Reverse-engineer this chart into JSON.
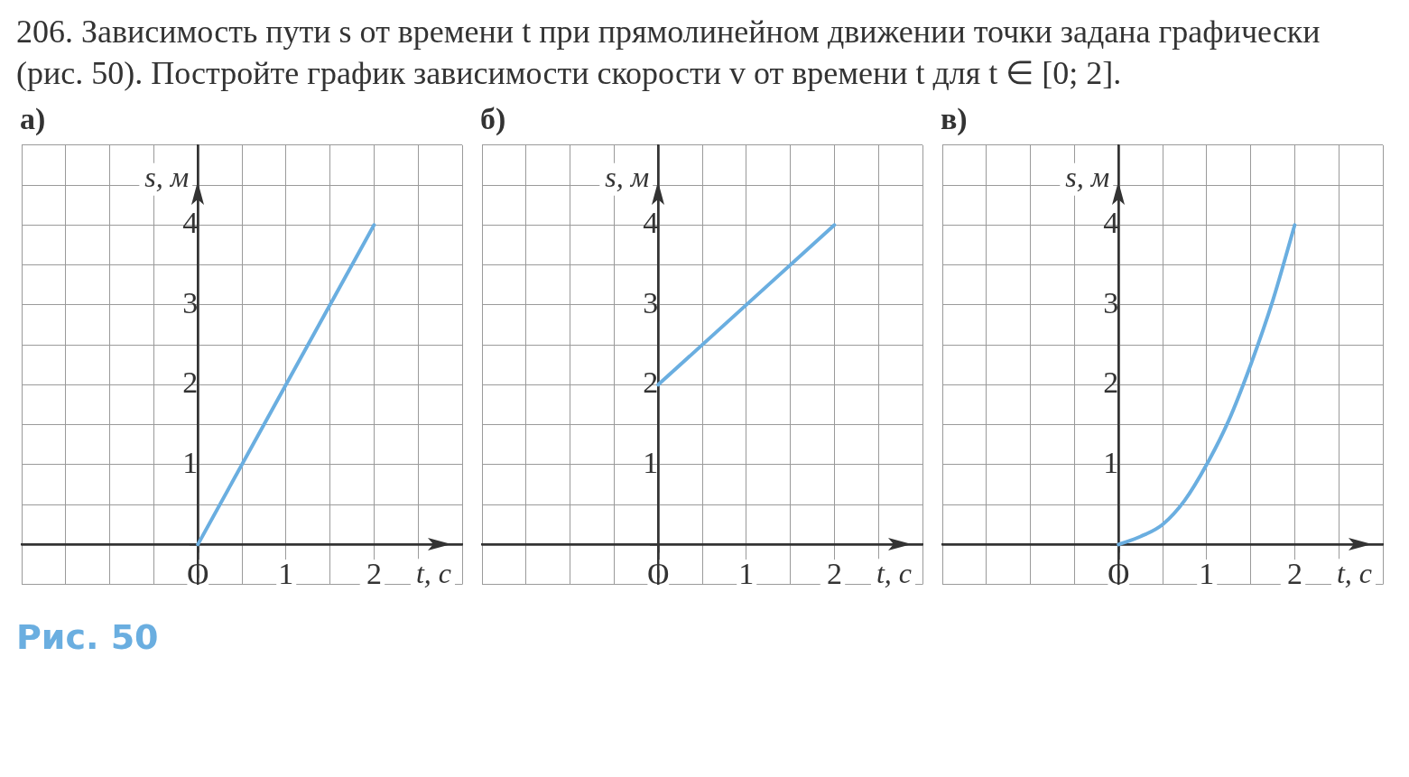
{
  "chart_data": [
    {
      "type": "other",
      "title": "206. Зависимость пути s от времени t при прямолинейном движении точки задана графически (рис. 50). Постройте график зависимости скорости v от времени t для t ∈ [0; 2]."
    },
    {
      "type": "line",
      "title": "а)",
      "xlabel": "t, с",
      "ylabel": "s, м",
      "marker": "none",
      "grid": true,
      "xlim": [
        -2,
        3
      ],
      "ylim": [
        -0.5,
        5
      ],
      "xticks": [
        {
          "value": -2,
          "label": null
        },
        {
          "value": -1.5,
          "label": null
        },
        {
          "value": -1,
          "label": null
        },
        {
          "value": -0.5,
          "label": null
        },
        {
          "value": 0,
          "label": "O"
        },
        {
          "value": 0.5,
          "label": null
        },
        {
          "value": 1,
          "label": "1"
        },
        {
          "value": 1.5,
          "label": null
        },
        {
          "value": 2,
          "label": "2"
        },
        {
          "value": 2.5,
          "label": null
        },
        {
          "value": 3,
          "label": null
        }
      ],
      "yticks": [
        {
          "value": -0.5,
          "label": null
        },
        {
          "value": 0,
          "label": null
        },
        {
          "value": 0.5,
          "label": null
        },
        {
          "value": 1,
          "label": "1"
        },
        {
          "value": 1.5,
          "label": null
        },
        {
          "value": 2,
          "label": "2"
        },
        {
          "value": 2.5,
          "label": null
        },
        {
          "value": 3,
          "label": "3"
        },
        {
          "value": 3.5,
          "label": null
        },
        {
          "value": 4,
          "label": "4"
        },
        {
          "value": 4.5,
          "label": null
        },
        {
          "value": 5,
          "label": null
        }
      ],
      "series": [
        {
          "color": "#6aaee0",
          "x": [
            0,
            2
          ],
          "values": [
            0,
            4
          ]
        }
      ]
    },
    {
      "type": "line",
      "title": "б)",
      "xlabel": "t, с",
      "ylabel": "s, м",
      "marker": "none",
      "grid": true,
      "xlim": [
        -2,
        3
      ],
      "ylim": [
        -0.5,
        5
      ],
      "xticks": [
        {
          "value": -2,
          "label": null
        },
        {
          "value": -1.5,
          "label": null
        },
        {
          "value": -1,
          "label": null
        },
        {
          "value": -0.5,
          "label": null
        },
        {
          "value": 0,
          "label": "O"
        },
        {
          "value": 0.5,
          "label": null
        },
        {
          "value": 1,
          "label": "1"
        },
        {
          "value": 1.5,
          "label": null
        },
        {
          "value": 2,
          "label": "2"
        },
        {
          "value": 2.5,
          "label": null
        },
        {
          "value": 3,
          "label": null
        }
      ],
      "yticks": [
        {
          "value": -0.5,
          "label": null
        },
        {
          "value": 0,
          "label": null
        },
        {
          "value": 0.5,
          "label": null
        },
        {
          "value": 1,
          "label": "1"
        },
        {
          "value": 1.5,
          "label": null
        },
        {
          "value": 2,
          "label": "2"
        },
        {
          "value": 2.5,
          "label": null
        },
        {
          "value": 3,
          "label": "3"
        },
        {
          "value": 3.5,
          "label": null
        },
        {
          "value": 4,
          "label": "4"
        },
        {
          "value": 4.5,
          "label": null
        },
        {
          "value": 5,
          "label": null
        }
      ],
      "series": [
        {
          "color": "#6aaee0",
          "x": [
            0,
            2
          ],
          "values": [
            2,
            4
          ]
        }
      ]
    },
    {
      "type": "line",
      "title": "в)",
      "xlabel": "t, с",
      "ylabel": "s, м",
      "marker": "none",
      "grid": true,
      "xlim": [
        -2,
        3
      ],
      "ylim": [
        -0.5,
        5
      ],
      "xticks": [
        {
          "value": -2,
          "label": null
        },
        {
          "value": -1.5,
          "label": null
        },
        {
          "value": -1,
          "label": null
        },
        {
          "value": -0.5,
          "label": null
        },
        {
          "value": 0,
          "label": "O"
        },
        {
          "value": 0.5,
          "label": null
        },
        {
          "value": 1,
          "label": "1"
        },
        {
          "value": 1.5,
          "label": null
        },
        {
          "value": 2,
          "label": "2"
        },
        {
          "value": 2.5,
          "label": null
        },
        {
          "value": 3,
          "label": null
        }
      ],
      "yticks": [
        {
          "value": -0.5,
          "label": null
        },
        {
          "value": 0,
          "label": null
        },
        {
          "value": 0.5,
          "label": null
        },
        {
          "value": 1,
          "label": "1"
        },
        {
          "value": 1.5,
          "label": null
        },
        {
          "value": 2,
          "label": "2"
        },
        {
          "value": 2.5,
          "label": null
        },
        {
          "value": 3,
          "label": "3"
        },
        {
          "value": 3.5,
          "label": null
        },
        {
          "value": 4,
          "label": "4"
        },
        {
          "value": 4.5,
          "label": null
        },
        {
          "value": 5,
          "label": null
        }
      ],
      "series": [
        {
          "color": "#6aaee0",
          "x": [
            0,
            0.25,
            0.5,
            0.75,
            1,
            1.25,
            1.5,
            1.75,
            2
          ],
          "values": [
            0,
            0.1,
            0.25,
            0.55,
            1,
            1.55,
            2.25,
            3.05,
            4
          ]
        }
      ]
    },
    {
      "type": "other",
      "annotations": [
        "Рис. 50"
      ]
    }
  ]
}
